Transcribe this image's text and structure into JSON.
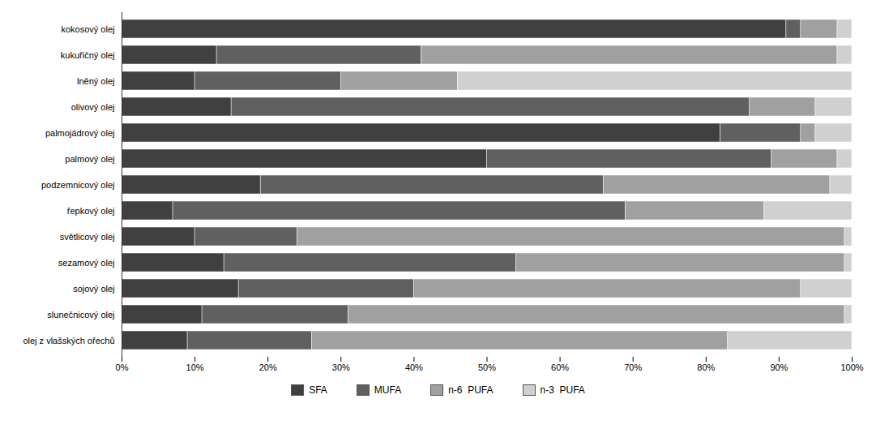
{
  "chart_data": {
    "type": "bar",
    "orientation": "horizontal",
    "stacked": true,
    "categories": [
      "kokosový olej",
      "kukuřičný olej",
      "lněný olej",
      "olivový olej",
      "palmojádrový olej",
      "palmový olej",
      "podzemnicový olej",
      "řepkový olej",
      "světlicový olej",
      "sezamový olej",
      "sojový olej",
      "slunečnicový olej",
      "olej z vlašských ořechů"
    ],
    "series": [
      {
        "name": "SFA",
        "color": "#404040",
        "values": [
          91,
          13,
          10,
          15,
          82,
          50,
          19,
          7,
          10,
          14,
          16,
          11,
          9
        ]
      },
      {
        "name": "MUFA",
        "color": "#606060",
        "values": [
          2,
          28,
          20,
          71,
          11,
          39,
          47,
          62,
          14,
          40,
          24,
          20,
          17
        ]
      },
      {
        "name": "n-6  PUFA",
        "color": "#a0a0a0",
        "values": [
          5,
          57,
          16,
          9,
          2,
          9,
          31,
          19,
          75,
          45,
          53,
          68,
          57
        ]
      },
      {
        "name": "n-3  PUFA",
        "color": "#d0d0d0",
        "values": [
          2,
          2,
          54,
          5,
          5,
          2,
          3,
          12,
          1,
          1,
          7,
          1,
          17
        ]
      }
    ],
    "xlim": [
      0,
      100
    ],
    "xticks": [
      {
        "value": 0,
        "label": "0%"
      },
      {
        "value": 10,
        "label": "10%"
      },
      {
        "value": 20,
        "label": "20%"
      },
      {
        "value": 30,
        "label": "30%"
      },
      {
        "value": 40,
        "label": "40%"
      },
      {
        "value": 50,
        "label": "50%"
      },
      {
        "value": 60,
        "label": "60%"
      },
      {
        "value": 70,
        "label": "70%"
      },
      {
        "value": 80,
        "label": "80%"
      },
      {
        "value": 90,
        "label": "90%"
      },
      {
        "value": 100,
        "label": "100%"
      }
    ],
    "grid": false,
    "legend": "bottom"
  }
}
